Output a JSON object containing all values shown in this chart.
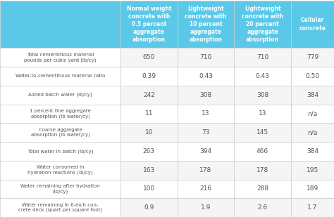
{
  "col_headers": [
    "Normal weight\nconcrete with\n0.5 percent\naggregate\nabsorption",
    "Lightweight\nconcrete with\n10 percent\naggregate\nabsorption",
    "Lightweight\nconcrete with\n20 percent\naggregate\nabsorption",
    "Cellular\nconcrete"
  ],
  "row_labels": [
    "Total cementitious material\npounds per cubic yard (lb/cy)",
    "Water-to-cementitious material ratio",
    "Added batch water (lb/cy)",
    "1 percent fine aggregate\nabsorption (lb water/cy)",
    "Coarse aggregate\nabsorption (lb water/cy)",
    "Total water in batch (lb/cy)",
    "Water consumed in\nhydration reactions (lb/cy)",
    "Water remaining after hydration\n(lb/cy)",
    "Water remaining in 6-inch con-\ncrete deck (quart per square foot)"
  ],
  "values": [
    [
      "650",
      "710",
      "710",
      "779"
    ],
    [
      "0.39",
      "0.43",
      "0.43",
      "0.50"
    ],
    [
      "242",
      "308",
      "308",
      "384"
    ],
    [
      "11",
      "13",
      "13",
      "n/a"
    ],
    [
      "10",
      "73",
      "145",
      "n/a"
    ],
    [
      "263",
      "394",
      "466",
      "384"
    ],
    [
      "163",
      "178",
      "178",
      "195"
    ],
    [
      "100",
      "216",
      "288",
      "189"
    ],
    [
      "0.9",
      "1.9",
      "2.6",
      "1.7"
    ]
  ],
  "header_bg": "#5bc8e8",
  "header_text": "#ffffff",
  "row_bg_even": "#ffffff",
  "row_bg_odd": "#f5f5f5",
  "cell_text": "#555555",
  "row_label_text": "#555555",
  "border_color": "#cccccc",
  "first_col_bg": "#ffffff"
}
